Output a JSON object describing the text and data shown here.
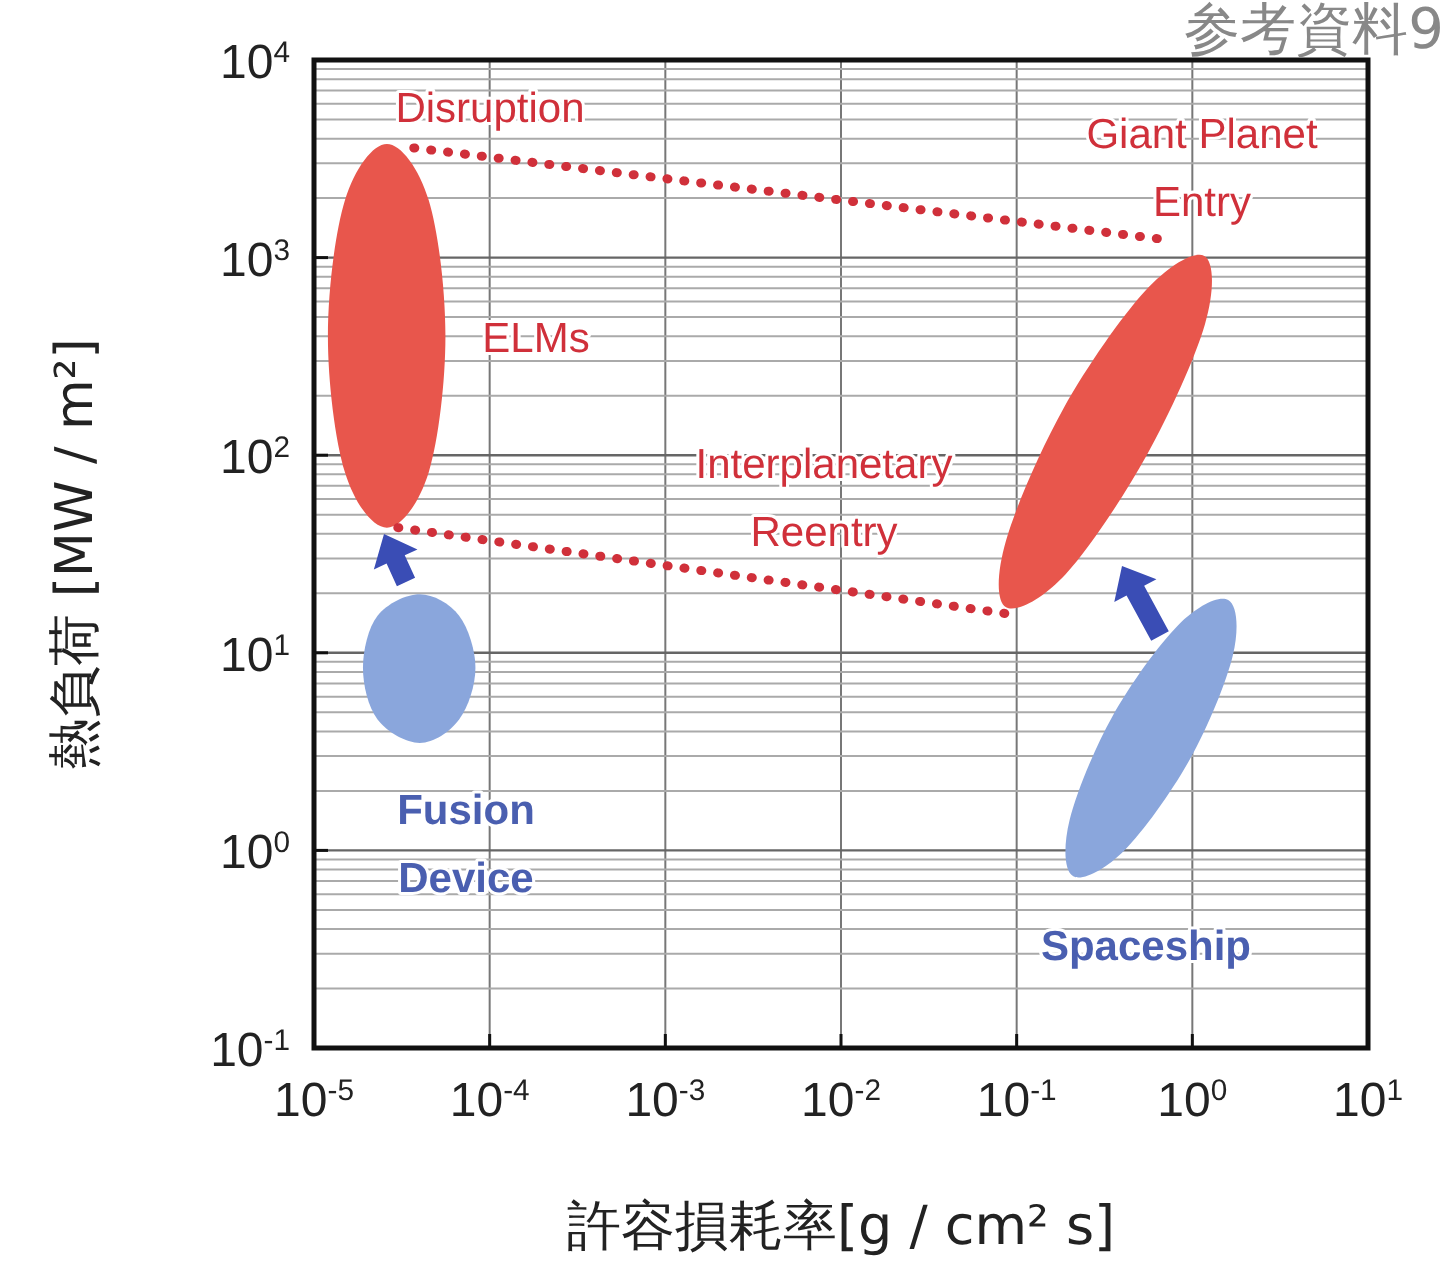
{
  "chart_data": {
    "type": "line",
    "xlabel": "許容損耗率[g / cm² s]",
    "ylabel": "熱負荷 [MW / m²]",
    "log": "xy",
    "grid": true,
    "xlim": [
      1e-05,
      10
    ],
    "ylim": [
      0.1,
      10000
    ],
    "xticks": [
      {
        "value": 1e-05,
        "label": "10$^{-5}$"
      },
      {
        "value": 0.0001,
        "label": "10$^{-4}$"
      },
      {
        "value": 0.001,
        "label": "10$^{-3}$"
      },
      {
        "value": 0.01,
        "label": "10$^{-2}$"
      },
      {
        "value": 0.1,
        "label": "10$^{-1}$"
      },
      {
        "value": 1,
        "label": "10$^{0}$"
      },
      {
        "value": 10,
        "label": "10$^{1}$"
      }
    ],
    "yticks": [
      {
        "value": 0.1,
        "label": "10$^{-1}$"
      },
      {
        "value": 1,
        "label": "10$^{0}$"
      },
      {
        "value": 10,
        "label": "10$^{1}$"
      },
      {
        "value": 100,
        "label": "10$^{2}$"
      },
      {
        "value": 1000,
        "label": "10$^{3}$"
      },
      {
        "value": 10000,
        "label": "10$^{4}$"
      }
    ],
    "series": [
      {
        "type": "area",
        "color": "#e8564c",
        "x": [
          5.6e-05,
          4.5e-05,
          2.6e-05,
          1.5e-05,
          1.2e-05,
          1.5e-05,
          2.6e-05,
          4.5e-05
        ],
        "values": [
          400,
          1950,
          3760,
          1950,
          400,
          82,
          43,
          82
        ]
      },
      {
        "type": "area",
        "color": "#8aa6dc",
        "x": [
          8.3e-05,
          6.7e-05,
          4e-05,
          2.3e-05,
          1.9e-05,
          2.3e-05,
          4e-05,
          6.7e-05
        ],
        "values": [
          8.4,
          15.4,
          19.8,
          15.4,
          8.4,
          4.6,
          3.5,
          4.6
        ]
      },
      {
        "type": "area",
        "color": "#e8564c",
        "x": [
          1.17,
          1.18,
          0.55,
          0.19,
          0.087,
          0.087,
          0.185,
          0.54
        ],
        "values": [
          1020,
          460,
          100,
          25,
          17,
          37,
          173,
          680
        ]
      },
      {
        "type": "area",
        "color": "#8aa6dc",
        "x": [
          1.6,
          1.7,
          0.97,
          0.41,
          0.21,
          0.2,
          0.35,
          0.83
        ],
        "values": [
          18.5,
          9.7,
          2.9,
          1.0,
          0.74,
          1.42,
          4.75,
          13.8
        ]
      },
      {
        "color": "#d0303a",
        "line_style": "dotted",
        "x": [
          3.7e-05,
          0.72
        ],
        "values": [
          3590,
          1230
        ]
      },
      {
        "color": "#d0303a",
        "line_style": "dotted",
        "x": [
          3e-05,
          0.091
        ],
        "values": [
          43,
          15.7
        ]
      }
    ],
    "annotations": [
      "Disruption",
      "Giant Planet\nEntry",
      "ELMs",
      "Interplanetary\nReentry",
      "Fusion\nDevice",
      "Spaceship",
      "参考資料9"
    ]
  }
}
